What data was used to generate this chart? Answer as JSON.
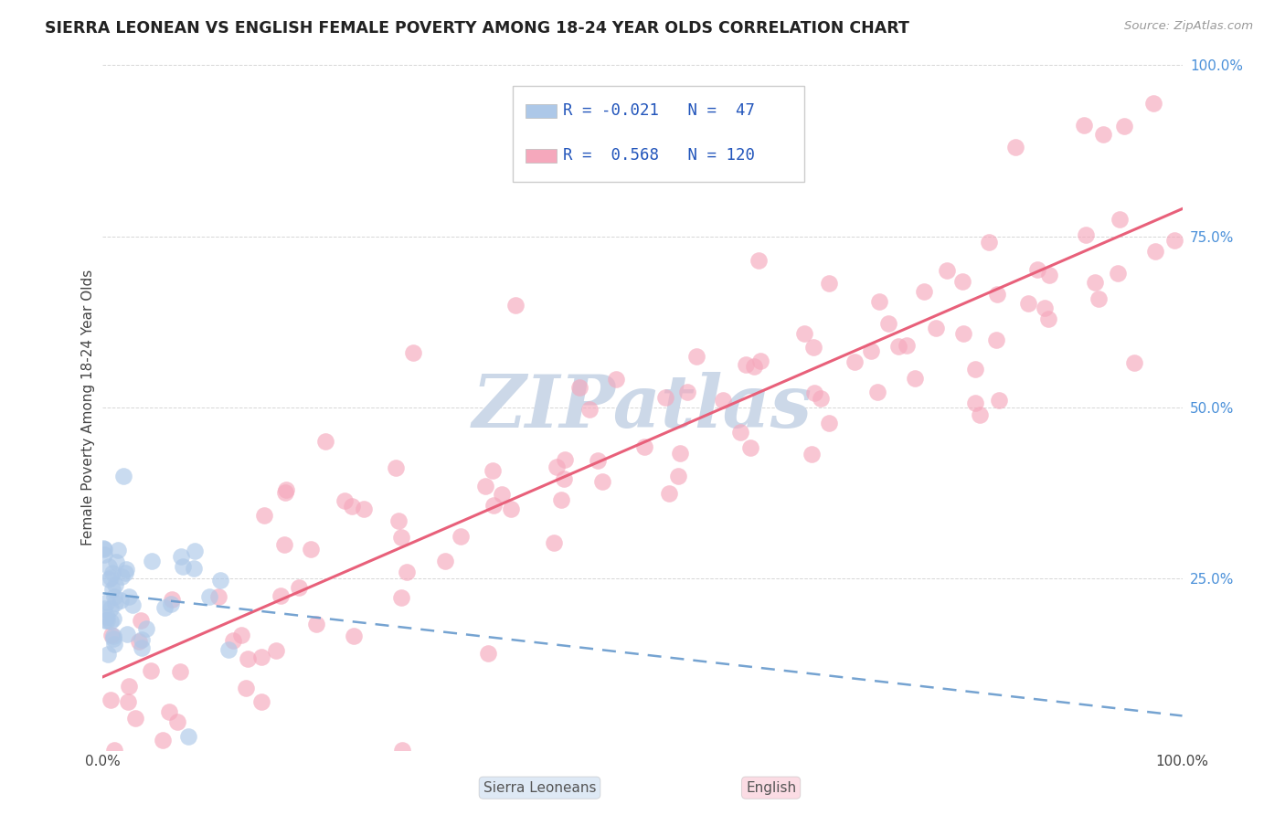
{
  "title": "SIERRA LEONEAN VS ENGLISH FEMALE POVERTY AMONG 18-24 YEAR OLDS CORRELATION CHART",
  "source": "Source: ZipAtlas.com",
  "ylabel": "Female Poverty Among 18-24 Year Olds",
  "sierra_R": "-0.021",
  "sierra_N": "47",
  "english_R": "0.568",
  "english_N": "120",
  "sierra_color": "#adc8e8",
  "english_color": "#f5a8bc",
  "sierra_line_color": "#6699cc",
  "english_line_color": "#e8607a",
  "background_color": "#ffffff",
  "grid_color": "#cccccc",
  "ytick_color": "#4a90d9",
  "xtick_color": "#444444",
  "title_color": "#222222",
  "source_color": "#999999",
  "watermark_color": "#ccd8e8",
  "legend_text_color": "#2255bb"
}
